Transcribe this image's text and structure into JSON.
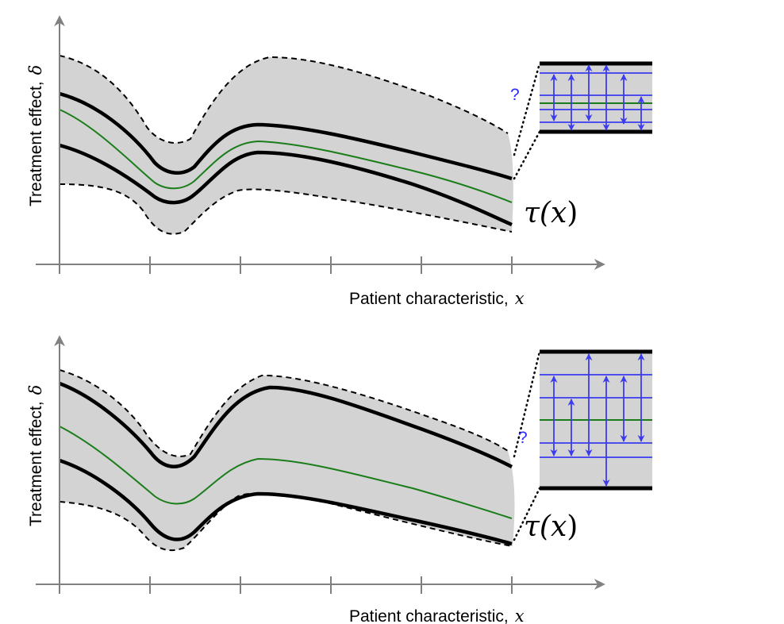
{
  "colors": {
    "band_fill": "#d3d3d3",
    "bound_line": "#000000",
    "true_effect_line": "#1a7d1a",
    "arrow": "#3b3bf0",
    "axis": "#808080",
    "question": "#2b2bff"
  },
  "panels": [
    {
      "id": "top",
      "ylabel": "Treatment effect,",
      "ylabel_symbol": "δ",
      "xlabel": "Patient  characteristic,",
      "xlabel_symbol": "x",
      "curve_label_prefix": "τ(",
      "curve_label_var": "x",
      "curve_label_suffix": ")",
      "question": "?"
    },
    {
      "id": "bottom",
      "ylabel": "Treatment effect,",
      "ylabel_symbol": "δ",
      "xlabel": "Patient  characteristic,",
      "xlabel_symbol": "x",
      "curve_label_prefix": "τ(",
      "curve_label_var": "x",
      "curve_label_suffix": ")",
      "question": "?"
    }
  ]
}
